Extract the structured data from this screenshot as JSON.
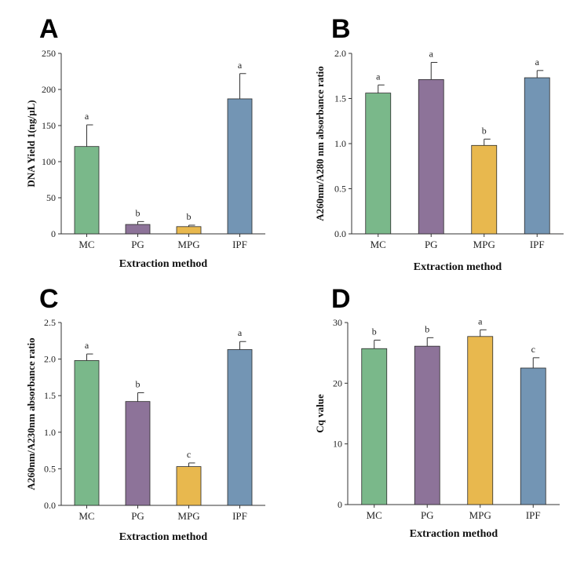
{
  "colors": {
    "MC": "#7ab88a",
    "PG": "#8d7399",
    "MPG": "#e8b84e",
    "IPF": "#7395b4",
    "axis": "#333333"
  },
  "chart_data": [
    {
      "panel": "A",
      "type": "bar",
      "categories": [
        "MC",
        "PG",
        "MPG",
        "IPF"
      ],
      "values": [
        121,
        13,
        10,
        187
      ],
      "errors": [
        30,
        4,
        2,
        35
      ],
      "significance": [
        "a",
        "b",
        "b",
        "a"
      ],
      "title": "",
      "xlabel": "Extraction method",
      "ylabel": "DNA Yield 1(ng/µL)",
      "ylim": [
        0,
        250
      ],
      "yticks": [
        0,
        50,
        100,
        150,
        200,
        250
      ],
      "ytick_labels": [
        "0",
        "50",
        "100",
        "150",
        "200",
        "250"
      ],
      "grid": false
    },
    {
      "panel": "B",
      "type": "bar",
      "categories": [
        "MC",
        "PG",
        "MPG",
        "IPF"
      ],
      "values": [
        1.56,
        1.71,
        0.98,
        1.73
      ],
      "errors": [
        0.09,
        0.19,
        0.07,
        0.08
      ],
      "significance": [
        "a",
        "a",
        "b",
        "a"
      ],
      "title": "",
      "xlabel": "Extraction method",
      "ylabel": "A260nm/A280 nm absorbance ratio",
      "ylim": [
        0,
        2.0
      ],
      "yticks": [
        0,
        0.5,
        1.0,
        1.5,
        2.0
      ],
      "ytick_labels": [
        "0.0",
        "0.5",
        "1.0",
        "1.5",
        "2.0"
      ],
      "grid": false
    },
    {
      "panel": "C",
      "type": "bar",
      "categories": [
        "MC",
        "PG",
        "MPG",
        "IPF"
      ],
      "values": [
        1.98,
        1.42,
        0.53,
        2.13
      ],
      "errors": [
        0.09,
        0.12,
        0.05,
        0.11
      ],
      "significance": [
        "a",
        "b",
        "c",
        "a"
      ],
      "title": "",
      "xlabel": "Extraction method",
      "ylabel": "A260nm/A230nm absorbance ratio",
      "ylim": [
        0,
        2.5
      ],
      "yticks": [
        0,
        0.5,
        1.0,
        1.5,
        2.0,
        2.5
      ],
      "ytick_labels": [
        "0.0",
        "0.5",
        "1.0",
        "1.5",
        "2.0",
        "2.5"
      ],
      "grid": false
    },
    {
      "panel": "D",
      "type": "bar",
      "categories": [
        "MC",
        "PG",
        "MPG",
        "IPF"
      ],
      "values": [
        25.7,
        26.1,
        27.7,
        22.5
      ],
      "errors": [
        1.4,
        1.4,
        1.1,
        1.7
      ],
      "significance": [
        "b",
        "b",
        "a",
        "c"
      ],
      "title": "",
      "xlabel": "Extraction method",
      "ylabel": "Cq value",
      "ylim": [
        0,
        30
      ],
      "yticks": [
        0,
        10,
        20,
        30
      ],
      "ytick_labels": [
        "0",
        "10",
        "20",
        "30"
      ],
      "grid": false
    }
  ]
}
